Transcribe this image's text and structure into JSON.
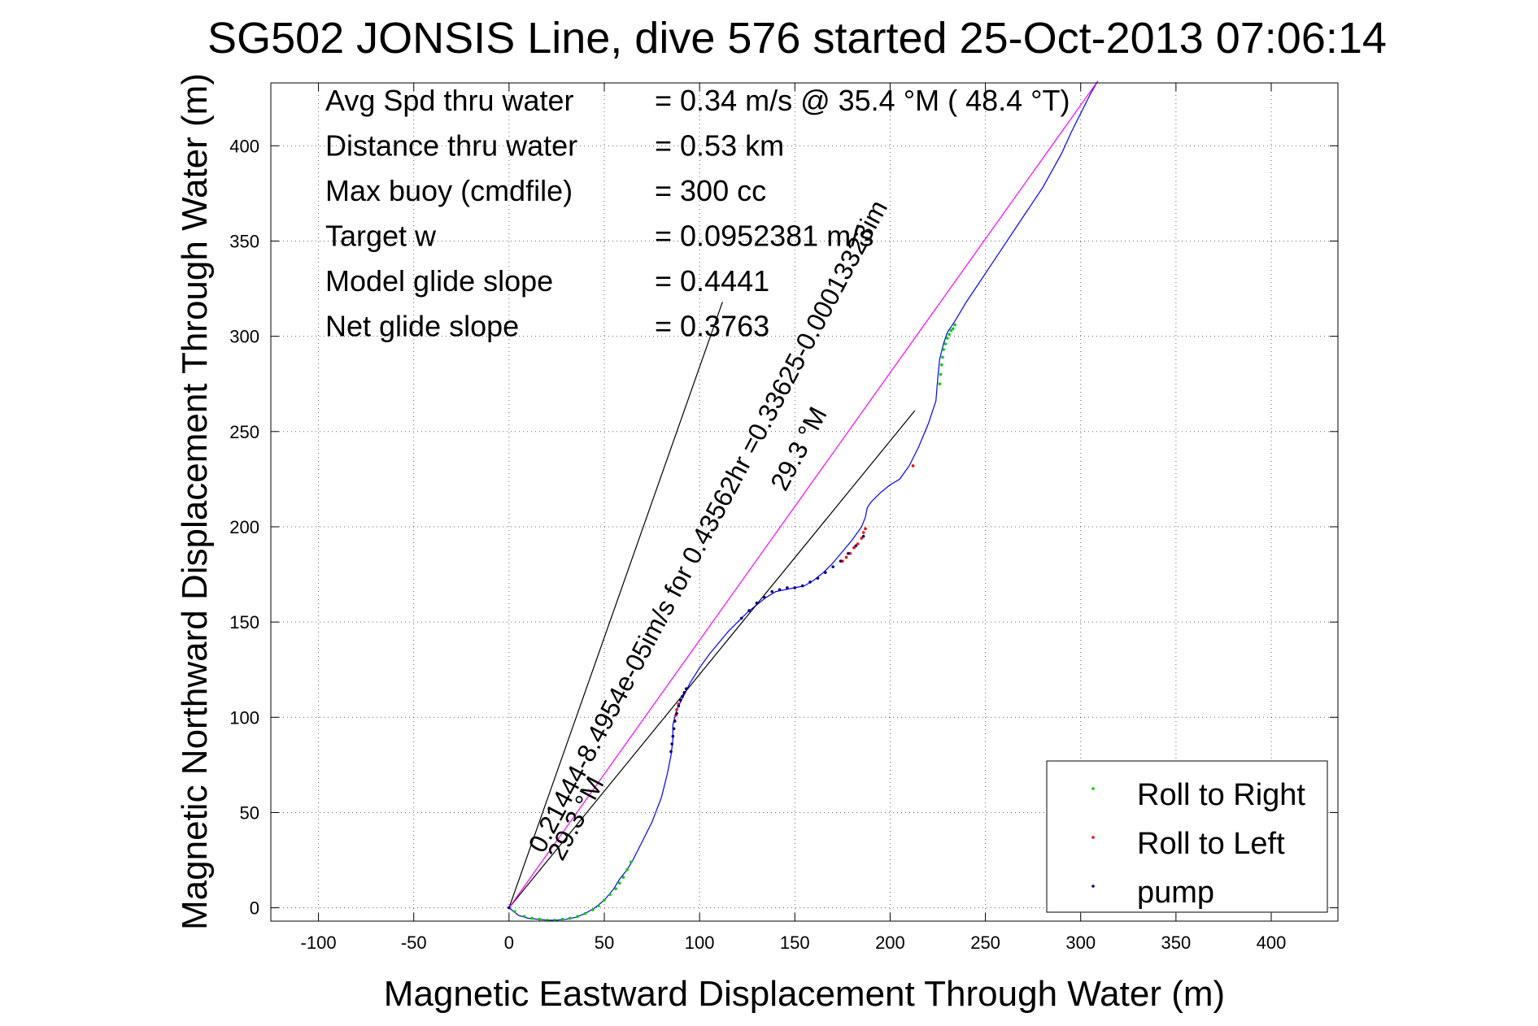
{
  "chart_data": {
    "type": "line",
    "title": "SG502 JONSIS Line, dive 576 started 25-Oct-2013 07:06:14",
    "xlabel": "Magnetic Eastward Displacement Through Water (m)",
    "ylabel": "Magnetic Northward Displacement Through Water (m)",
    "xlim": [
      -125,
      435
    ],
    "ylim": [
      -7,
      433
    ],
    "xticks": [
      -100,
      -50,
      0,
      50,
      100,
      150,
      200,
      250,
      300,
      350,
      400
    ],
    "yticks": [
      0,
      50,
      100,
      150,
      200,
      250,
      300,
      350,
      400
    ],
    "grid": true,
    "legend_position": "bottom-right",
    "info_lines": [
      {
        "label": "Avg Spd thru water",
        "value": "=  0.34 m/s @  35.4 °M ( 48.4 °T)"
      },
      {
        "label": "Distance thru water",
        "value": "=  0.53 km"
      },
      {
        "label": "Max buoy (cmdfile)",
        "value": "= 300 cc"
      },
      {
        "label": "Target w",
        "value": "= 0.0952381 m/s"
      },
      {
        "label": "Model glide slope",
        "value": "= 0.4441"
      },
      {
        "label": "Net glide slope",
        "value": "= 0.3763"
      }
    ],
    "annotations": [
      {
        "text": "0.21444-8.4954e-05im/s for 0.43562hr =0.33625-0.00013323im",
        "x": 18,
        "y": 28,
        "angle_deg": 62
      },
      {
        "text": "29.3 °M",
        "x": 28,
        "y": 24,
        "angle_deg": 62
      },
      {
        "text": "29.3 °M",
        "x": 145,
        "y": 218,
        "angle_deg": 62
      }
    ],
    "series": [
      {
        "name": "track",
        "color": "#0000ff",
        "x": [
          0,
          5,
          10,
          15,
          20,
          25,
          30,
          35,
          40,
          45,
          50,
          55,
          58,
          62,
          65,
          70,
          75,
          80,
          83,
          85,
          86,
          86,
          88,
          92,
          95,
          100,
          105,
          110,
          115,
          120,
          125,
          130,
          135,
          140,
          145,
          150,
          155,
          160,
          165,
          170,
          175,
          180,
          185,
          187,
          188,
          190,
          195,
          200,
          205,
          210,
          215,
          220,
          224,
          225,
          226,
          228,
          230,
          234,
          240,
          250,
          260,
          270,
          280,
          290,
          295,
          300,
          305,
          309
        ],
        "y": [
          0,
          -4,
          -5.5,
          -6,
          -6.5,
          -6.5,
          -6,
          -5,
          -3,
          0,
          4,
          10,
          15,
          20,
          25,
          35,
          45,
          58,
          70,
          80,
          88,
          96,
          104,
          112,
          118,
          126,
          133,
          139,
          145,
          150,
          155,
          159,
          163,
          166,
          167,
          168,
          169,
          172,
          176,
          181,
          187,
          193,
          200,
          205,
          210,
          213,
          218,
          222,
          225,
          232,
          242,
          254,
          266,
          278,
          288,
          296,
          302,
          308,
          318,
          333,
          348,
          363,
          378,
          396,
          407,
          417,
          427,
          434
        ]
      },
      {
        "name": "glide line 1",
        "color": "#000000",
        "x": [
          0,
          112
        ],
        "y": [
          0,
          318
        ]
      },
      {
        "name": "glide line 2",
        "color": "#000000",
        "x": [
          0,
          213
        ],
        "y": [
          0,
          261
        ]
      },
      {
        "name": "net displacement",
        "color": "#ff00ff",
        "x": [
          0,
          309
        ],
        "y": [
          0,
          434
        ]
      }
    ],
    "markers": [
      {
        "name": "Roll to Right",
        "color": "#00cc00",
        "x": [
          3,
          8,
          12,
          16,
          20,
          24,
          28,
          32,
          36,
          40,
          44,
          47,
          50,
          53,
          56,
          58,
          60,
          62,
          64,
          226,
          226.5,
          227,
          227.5,
          228,
          229,
          230,
          231,
          232,
          233,
          234
        ],
        "y": [
          -2,
          -4.5,
          -5.5,
          -6,
          -6.5,
          -6.5,
          -6,
          -5.5,
          -4.5,
          -3,
          -1,
          1,
          4,
          7,
          10,
          13,
          16,
          20,
          24,
          275,
          280,
          285,
          289,
          293,
          296,
          299,
          301,
          303,
          304,
          306
        ]
      },
      {
        "name": "Roll to Left",
        "color": "#ff0000",
        "x": [
          86,
          86.5,
          87,
          87.5,
          88,
          89,
          90,
          91,
          92,
          93,
          175,
          177,
          179,
          181,
          183,
          185,
          186,
          187,
          212
        ],
        "y": [
          90,
          94,
          98,
          101,
          104,
          107,
          109,
          111,
          113,
          115,
          182,
          184,
          186,
          189,
          191,
          194,
          197,
          199,
          232
        ]
      },
      {
        "name": "pump",
        "color": "#000080",
        "x": [
          0,
          85,
          85.5,
          86,
          86.5,
          87,
          88,
          89,
          90,
          91,
          92,
          93,
          122,
          126,
          130,
          134,
          138,
          142,
          146,
          150,
          154,
          158,
          162,
          166,
          170,
          174,
          178,
          182,
          186
        ],
        "y": [
          0,
          82,
          86,
          90,
          94,
          98,
          102,
          106,
          109,
          111,
          113,
          115,
          152,
          156,
          160,
          163,
          166,
          167,
          168,
          168,
          169,
          171,
          173,
          176,
          179,
          182,
          186,
          190,
          195
        ]
      }
    ]
  },
  "legend": {
    "items": [
      {
        "label": "Roll to Right",
        "color": "#00cc00"
      },
      {
        "label": "Roll to Left",
        "color": "#ff0000"
      },
      {
        "label": "pump",
        "color": "#000080"
      }
    ]
  }
}
